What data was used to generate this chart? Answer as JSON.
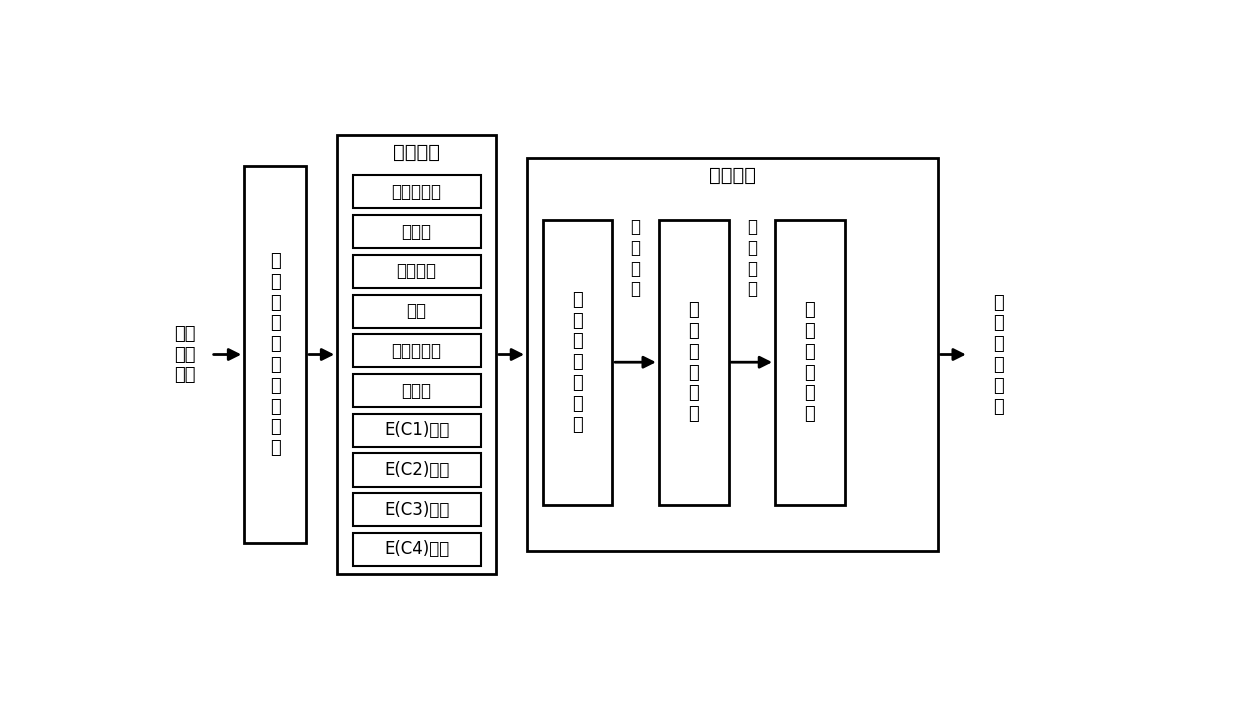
{
  "bg_color": "#ffffff",
  "feature_extraction_title": "特征提取",
  "feature_items": [
    "绝对平均值",
    "均方根",
    "中心频率",
    "峭度",
    "均方根频率",
    "标准差",
    "E(C1)分量",
    "E(C2)分量",
    "E(C3)分量",
    "E(C4)分量"
  ],
  "feature_selection_title": "特征选择",
  "left_input_label": "辊轴\n振动\n数据",
  "left_box_label": "辊\n轴\n振\n动\n数\n据\n平\n滑\n处\n理",
  "norm_box_label": "归\n一\n化\n特\n征\n矩\n阵",
  "contrib_label": "贡\n献\n筛\n选",
  "feature_vec_label": "特\n征\n向\n量\n矩\n阵",
  "weighted_label": "加\n权\n融\n合",
  "perf_index_label": "性\n能\n指\n标\n矩\n阵",
  "right_output_label": "性\n能\n衰\n退\n指\n标"
}
